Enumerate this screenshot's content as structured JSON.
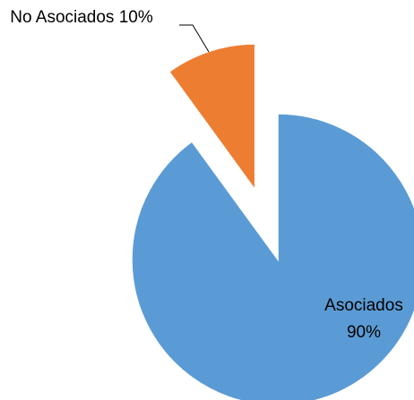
{
  "chart_data": {
    "type": "pie",
    "categories": [
      "Asociados",
      "No Asociados"
    ],
    "values": [
      90,
      10
    ],
    "value_labels": [
      "90%",
      "10%"
    ],
    "colors": [
      "#5b9bd5",
      "#ed7d31"
    ]
  }
}
